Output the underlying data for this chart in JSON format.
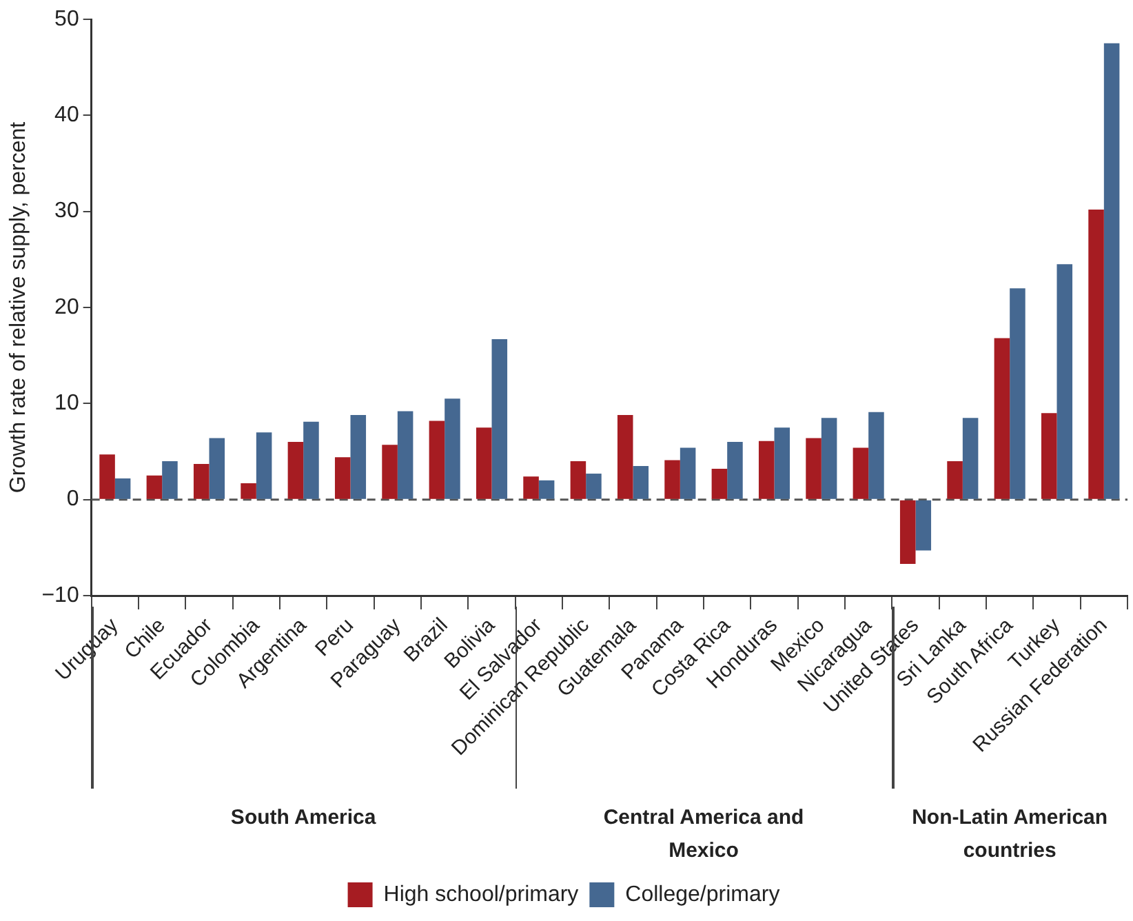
{
  "chart_data": {
    "type": "bar",
    "ylabel": "Growth rate of relative supply, percent",
    "categories": [
      "Uruguay",
      "Chile",
      "Ecuador",
      "Colombia",
      "Argentina",
      "Peru",
      "Paraguay",
      "Brazil",
      "Bolivia",
      "El Salvador",
      "Dominican Republic",
      "Guatemala",
      "Panama",
      "Costa Rica",
      "Honduras",
      "Mexico",
      "Nicaragua",
      "United States",
      "Sri Lanka",
      "South Africa",
      "Turkey",
      "Russian Federation"
    ],
    "series": [
      {
        "name": "High school/primary",
        "color": "#a61c22",
        "values": [
          4.7,
          2.5,
          3.7,
          1.7,
          6.0,
          4.4,
          5.7,
          8.2,
          7.5,
          2.4,
          4.0,
          8.8,
          4.1,
          3.2,
          6.1,
          6.4,
          5.4,
          -6.7,
          4.0,
          16.8,
          9.0,
          30.2
        ]
      },
      {
        "name": "College/primary",
        "color": "#456891",
        "values": [
          2.2,
          4.0,
          6.4,
          7.0,
          8.1,
          8.8,
          9.2,
          10.5,
          16.7,
          2.0,
          2.7,
          3.5,
          5.4,
          6.0,
          7.5,
          8.5,
          9.1,
          -5.3,
          8.5,
          22.0,
          24.5,
          47.5
        ]
      }
    ],
    "ylim": [
      -10,
      50
    ],
    "yticks": [
      {
        "value": -10,
        "label": "−10"
      },
      0,
      10,
      20,
      30,
      40,
      50
    ],
    "ref_lines": [
      {
        "axis": "y",
        "value": 0,
        "line_style": "dashed",
        "color": "#555555"
      }
    ],
    "annotations": [
      "South America",
      "Central America and Mexico",
      "Non-Latin American countries"
    ],
    "grid": false,
    "legend": "bottom"
  }
}
